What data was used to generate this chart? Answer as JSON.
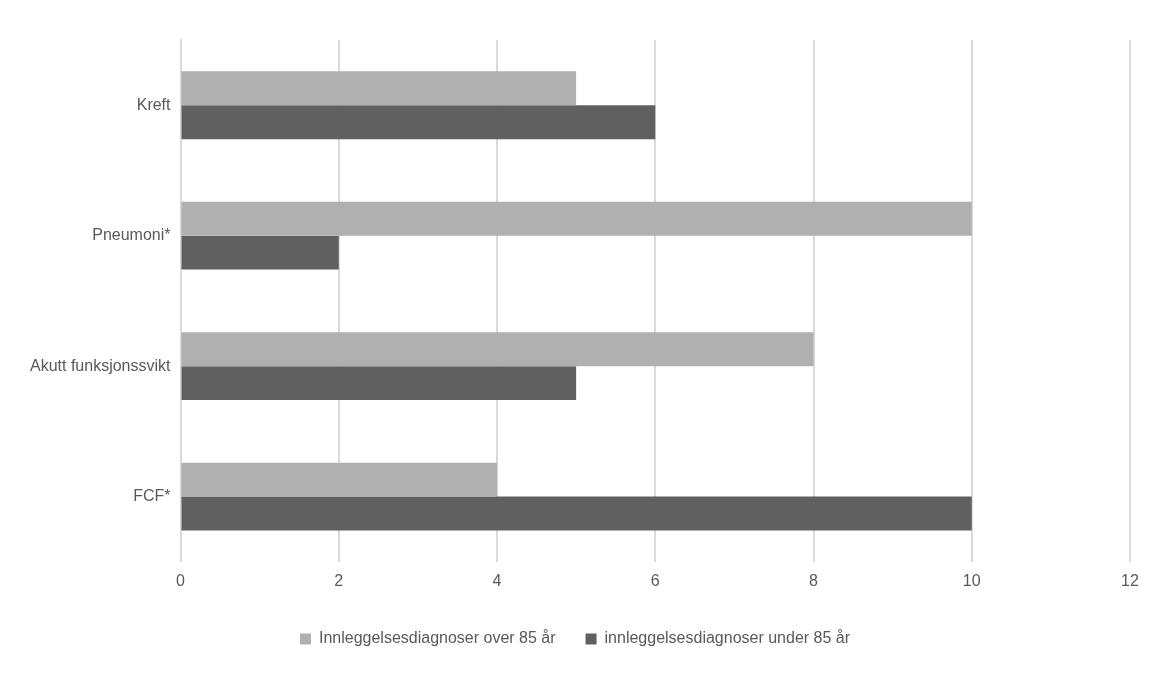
{
  "chart_data": {
    "type": "bar",
    "orientation": "horizontal",
    "categories": [
      "Kreft",
      "Pneumoni*",
      "Akutt funksjonssvikt",
      "FCF*"
    ],
    "series": [
      {
        "name": "Innleggelsesdiagnoser over 85 år",
        "color": "#b0b0b0",
        "values": [
          5,
          10,
          8,
          4
        ]
      },
      {
        "name": "innleggelsesdiagnoser under 85 år",
        "color": "#606060",
        "values": [
          6,
          2,
          5,
          10
        ]
      }
    ],
    "xlim": [
      0,
      12
    ],
    "xticks": [
      0,
      2,
      4,
      6,
      8,
      10,
      12
    ],
    "grid": "x",
    "legend": "bottom"
  }
}
